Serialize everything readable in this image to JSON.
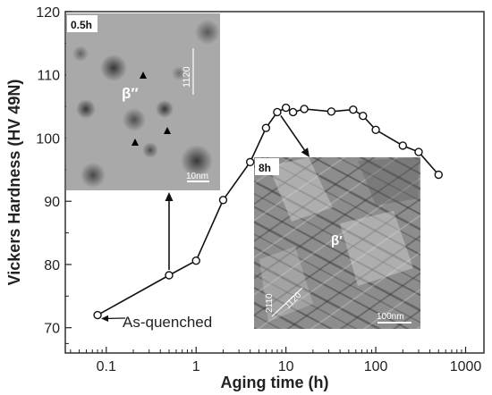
{
  "chart_data": {
    "type": "line",
    "xlabel": "Aging time (h)",
    "ylabel": "Vickers Hardness (HV 49N)",
    "xscale": "log",
    "xlim": [
      0.035,
      1600
    ],
    "ylim": [
      66,
      120
    ],
    "x_ticks": [
      0.1,
      1,
      10,
      100,
      1000
    ],
    "x_tick_labels": [
      "0.1",
      "1",
      "10",
      "100",
      "1000"
    ],
    "y_ticks": [
      70,
      80,
      90,
      100,
      110,
      120
    ],
    "y_tick_labels": [
      "70",
      "80",
      "90",
      "100",
      "110",
      "120"
    ],
    "grid": false,
    "series": [
      {
        "marker": "open-circle",
        "x": [
          0.08,
          0.5,
          1,
          2,
          4,
          6,
          8,
          10,
          12,
          16,
          32,
          56,
          72,
          100,
          200,
          300,
          500
        ],
        "y": [
          72,
          78.3,
          80.6,
          90.2,
          96.2,
          101.6,
          104.1,
          104.8,
          104.1,
          104.6,
          104.2,
          104.5,
          103.5,
          101.3,
          98.8,
          97.8,
          94.2
        ]
      }
    ],
    "annotations": [
      {
        "text": "As-quenched"
      }
    ]
  },
  "insets": [
    {
      "label": "0.5h",
      "phase": "β′′",
      "direction": "1120",
      "scale": "10nm"
    },
    {
      "label": "8h",
      "phase": "β′",
      "direction_1": "2110",
      "direction_2": "1120",
      "scale": "100nm"
    }
  ]
}
